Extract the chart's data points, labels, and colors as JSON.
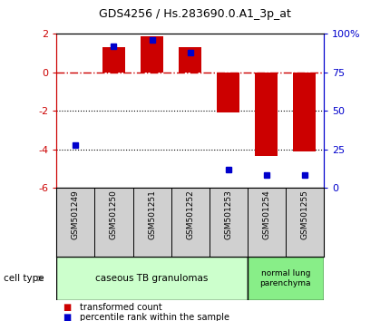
{
  "title": "GDS4256 / Hs.283690.0.A1_3p_at",
  "categories": [
    "GSM501249",
    "GSM501250",
    "GSM501251",
    "GSM501252",
    "GSM501253",
    "GSM501254",
    "GSM501255"
  ],
  "bar_values": [
    0.0,
    1.3,
    1.85,
    1.3,
    -2.1,
    -4.35,
    -4.1
  ],
  "percentile_values": [
    28,
    92,
    96,
    88,
    12,
    8,
    8
  ],
  "bar_color": "#cc0000",
  "dot_color": "#0000cc",
  "ylim_left": [
    -6,
    2
  ],
  "ylim_right": [
    0,
    100
  ],
  "yticks_left": [
    -6,
    -4,
    -2,
    0,
    2
  ],
  "yticks_right": [
    0,
    25,
    50,
    75,
    100
  ],
  "yticklabels_right": [
    "0",
    "25",
    "50",
    "75",
    "100%"
  ],
  "dotted_lines": [
    -2,
    -4
  ],
  "group1_n": 5,
  "group2_n": 2,
  "group1_label": "caseous TB granulomas",
  "group2_label": "normal lung\nparenchyma",
  "group1_color": "#ccffcc",
  "group2_color": "#88ee88",
  "cell_type_label": "cell type",
  "legend_bar_label": "transformed count",
  "legend_dot_label": "percentile rank within the sample",
  "bar_width": 0.6,
  "background_color": "#ffffff",
  "plot_bg_color": "#ffffff",
  "box_bg_color": "#d0d0d0"
}
